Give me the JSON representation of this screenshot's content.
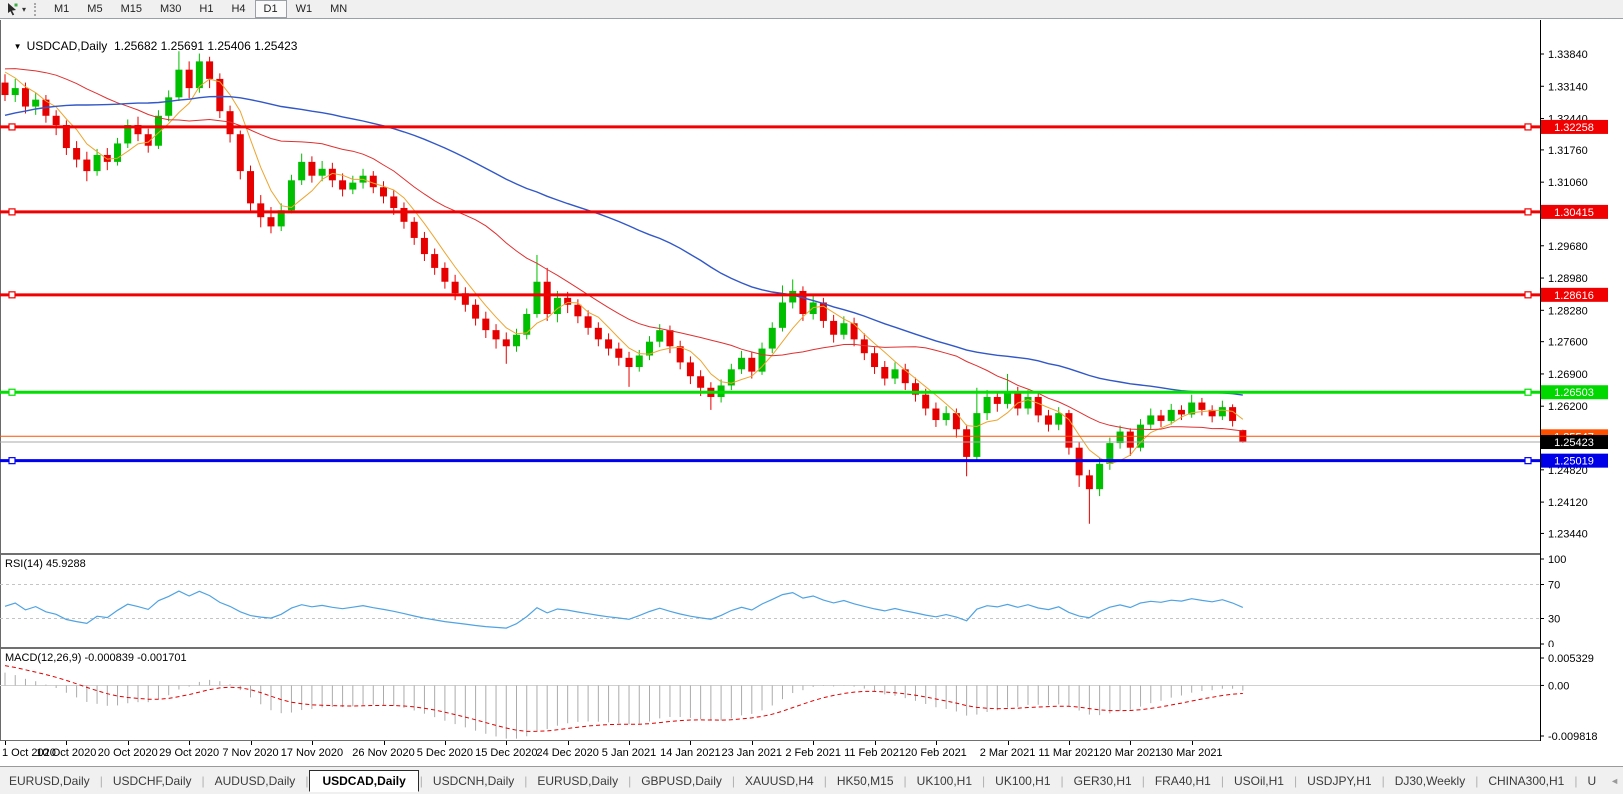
{
  "toolbar": {
    "cursor_tool_caret": "▾",
    "timeframes": [
      "M1",
      "M5",
      "M15",
      "M30",
      "H1",
      "H4",
      "D1",
      "W1",
      "MN"
    ],
    "active_timeframe": "D1"
  },
  "chart": {
    "title_marker": "▼",
    "symbol": "USDCAD,Daily",
    "ohlc_text": "1.25682 1.25691 1.25406 1.25423"
  },
  "price_axis": {
    "labels": [
      "1.33840",
      "1.33140",
      "1.32440",
      "1.31760",
      "1.31060",
      "1.29680",
      "1.28980",
      "1.28280",
      "1.27600",
      "1.26900",
      "1.26200",
      "1.24820",
      "1.24120",
      "1.23440"
    ]
  },
  "hlines": [
    {
      "name": "resistance-1",
      "price": 1.32258,
      "label": "1.32258",
      "color": "#f00000",
      "width": 3,
      "handles": true,
      "badge": "#f00000",
      "text": "#ffffff"
    },
    {
      "name": "resistance-2",
      "price": 1.30415,
      "label": "1.30415",
      "color": "#f00000",
      "width": 3,
      "handles": true,
      "badge": "#f00000",
      "text": "#ffffff"
    },
    {
      "name": "resistance-3",
      "price": 1.28616,
      "label": "1.28616",
      "color": "#f00000",
      "width": 3,
      "handles": true,
      "badge": "#f00000",
      "text": "#ffffff"
    },
    {
      "name": "support-green",
      "price": 1.26503,
      "label": "1.26503",
      "color": "#00e000",
      "width": 3,
      "handles": true,
      "badge": "#00d800",
      "text": "#ffffff"
    },
    {
      "name": "level-orange",
      "price": 1.25547,
      "label": "1.25547",
      "color": "#ff5000",
      "width": 1,
      "handles": false,
      "badge": "#ff5000",
      "text": "#ffffff"
    },
    {
      "name": "current-price",
      "price": 1.25423,
      "label": "1.25423",
      "color": "#a8a8a8",
      "width": 1,
      "handles": false,
      "badge": "#000000",
      "text": "#ffffff"
    },
    {
      "name": "support-blue",
      "price": 1.25019,
      "label": "1.25019",
      "color": "#0000f0",
      "width": 3,
      "handles": true,
      "badge": "#0000e8",
      "text": "#ffffff"
    }
  ],
  "rsi_panel": {
    "label": "RSI(14) 45.9288",
    "axis_labels": [
      {
        "v": 100,
        "t": "100"
      },
      {
        "v": 70,
        "t": "70"
      },
      {
        "v": 30,
        "t": "30"
      },
      {
        "v": 0,
        "t": "0"
      }
    ],
    "levels": [
      70,
      30
    ],
    "line_color": "#4fa3e3"
  },
  "macd_panel": {
    "label": "MACD(12,26,9) -0.000839 -0.001701",
    "axis_labels": [
      {
        "v": 0.005329,
        "t": "0.005329"
      },
      {
        "v": 0,
        "t": "0.00"
      },
      {
        "v": -0.009818,
        "t": "-0.009818"
      }
    ],
    "axis_max": 0.005329,
    "axis_min": -0.009818,
    "hist_color": "#ababab",
    "signal_color": "#e00000"
  },
  "date_axis": {
    "ticks": [
      [
        0,
        "1 Oct 2020"
      ],
      [
        6,
        "10 Oct 2020"
      ],
      [
        12,
        "20 Oct 2020"
      ],
      [
        18,
        "29 Oct 2020"
      ],
      [
        24,
        "7 Nov 2020"
      ],
      [
        30,
        "17 Nov 2020"
      ],
      [
        37,
        "26 Nov 2020"
      ],
      [
        43,
        "5 Dec 2020"
      ],
      [
        49,
        "15 Dec 2020"
      ],
      [
        55,
        "24 Dec 2020"
      ],
      [
        61,
        "5 Jan 2021"
      ],
      [
        67,
        "14 Jan 2021"
      ],
      [
        73,
        "23 Jan 2021"
      ],
      [
        79,
        "2 Feb 2021"
      ],
      [
        85,
        "11 Feb 2021"
      ],
      [
        91,
        "20 Feb 2021"
      ],
      [
        98,
        "2 Mar 2021"
      ],
      [
        104,
        "11 Mar 2021"
      ],
      [
        110,
        "20 Mar 2021"
      ],
      [
        116,
        "30 Mar 2021"
      ]
    ]
  },
  "tabs": {
    "items": [
      "EURUSD,Daily",
      "USDCHF,Daily",
      "AUDUSD,Daily",
      "USDCAD,Daily",
      "USDCNH,Daily",
      "EURUSD,Daily",
      "GBPUSD,Daily",
      "XAUUSD,H4",
      "HK50,M15",
      "UK100,H1",
      "UK100,H1",
      "GER30,H1",
      "FRA40,H1",
      "USOil,H1",
      "USDJPY,H1",
      "DJ30,Weekly",
      "CHINA300,H1",
      "U"
    ],
    "active": "USDCAD,Daily",
    "left_arrow": "◄",
    "right_arrow": "►"
  },
  "chart_data": {
    "type": "candlestick",
    "title": "USDCAD,Daily",
    "bull_color": "#00be00",
    "bear_color": "#e60000",
    "price_top_label": 1.3384,
    "price_bottom_label": 1.2344,
    "candles": [
      [
        1.3322,
        1.334,
        1.3282,
        1.3295
      ],
      [
        1.3295,
        1.333,
        1.328,
        1.331
      ],
      [
        1.331,
        1.3322,
        1.3255,
        1.327
      ],
      [
        1.327,
        1.33,
        1.3252,
        1.3285
      ],
      [
        1.3285,
        1.3295,
        1.3235,
        1.325
      ],
      [
        1.325,
        1.3262,
        1.3208,
        1.323
      ],
      [
        1.323,
        1.324,
        1.3165,
        1.318
      ],
      [
        1.318,
        1.3195,
        1.3138,
        1.3155
      ],
      [
        1.3155,
        1.3172,
        1.3108,
        1.313
      ],
      [
        1.313,
        1.3178,
        1.312,
        1.3165
      ],
      [
        1.3165,
        1.318,
        1.3132,
        1.315
      ],
      [
        1.315,
        1.3202,
        1.3142,
        1.319
      ],
      [
        1.319,
        1.3242,
        1.318,
        1.323
      ],
      [
        1.323,
        1.3248,
        1.3195,
        1.321
      ],
      [
        1.321,
        1.3222,
        1.317,
        1.3185
      ],
      [
        1.3185,
        1.3262,
        1.3178,
        1.325
      ],
      [
        1.325,
        1.3305,
        1.3238,
        1.329
      ],
      [
        1.329,
        1.339,
        1.3282,
        1.335
      ],
      [
        1.335,
        1.3368,
        1.3288,
        1.331
      ],
      [
        1.331,
        1.3385,
        1.33,
        1.3368
      ],
      [
        1.3368,
        1.3378,
        1.331,
        1.333
      ],
      [
        1.333,
        1.3342,
        1.3245,
        1.326
      ],
      [
        1.326,
        1.3272,
        1.3192,
        1.321
      ],
      [
        1.321,
        1.3218,
        1.3112,
        1.313
      ],
      [
        1.313,
        1.3142,
        1.3042,
        1.306
      ],
      [
        1.306,
        1.3078,
        1.3008,
        1.303
      ],
      [
        1.303,
        1.3052,
        1.2995,
        1.301
      ],
      [
        1.301,
        1.306,
        1.3,
        1.3045
      ],
      [
        1.3045,
        1.3122,
        1.3038,
        1.311
      ],
      [
        1.311,
        1.3168,
        1.31,
        1.315
      ],
      [
        1.315,
        1.3162,
        1.3105,
        1.312
      ],
      [
        1.312,
        1.3152,
        1.3108,
        1.3135
      ],
      [
        1.3135,
        1.3148,
        1.3095,
        1.311
      ],
      [
        1.311,
        1.3125,
        1.3075,
        1.309
      ],
      [
        1.309,
        1.312,
        1.308,
        1.3105
      ],
      [
        1.3105,
        1.3135,
        1.3092,
        1.312
      ],
      [
        1.312,
        1.313,
        1.3082,
        1.3095
      ],
      [
        1.3095,
        1.3108,
        1.306,
        1.3075
      ],
      [
        1.3075,
        1.3088,
        1.3035,
        1.305
      ],
      [
        1.305,
        1.3062,
        1.3005,
        1.302
      ],
      [
        1.302,
        1.303,
        1.297,
        1.2985
      ],
      [
        1.2985,
        1.2998,
        1.2935,
        1.295
      ],
      [
        1.295,
        1.2962,
        1.2905,
        1.292
      ],
      [
        1.292,
        1.2932,
        1.2875,
        1.289
      ],
      [
        1.289,
        1.2905,
        1.285,
        1.2865
      ],
      [
        1.2865,
        1.2878,
        1.2825,
        1.284
      ],
      [
        1.284,
        1.2852,
        1.2795,
        1.281
      ],
      [
        1.281,
        1.2825,
        1.2768,
        1.2785
      ],
      [
        1.2785,
        1.2798,
        1.2745,
        1.2765
      ],
      [
        1.2765,
        1.278,
        1.2712,
        1.275
      ],
      [
        1.275,
        1.2788,
        1.2738,
        1.2775
      ],
      [
        1.2775,
        1.2832,
        1.2765,
        1.282
      ],
      [
        1.282,
        1.2948,
        1.2812,
        1.289
      ],
      [
        1.289,
        1.292,
        1.2805,
        1.282
      ],
      [
        1.282,
        1.287,
        1.2802,
        1.2855
      ],
      [
        1.2855,
        1.2868,
        1.2822,
        1.284
      ],
      [
        1.284,
        1.2852,
        1.28,
        1.2815
      ],
      [
        1.2815,
        1.2828,
        1.2775,
        1.279
      ],
      [
        1.279,
        1.2802,
        1.275,
        1.2765
      ],
      [
        1.2765,
        1.2778,
        1.273,
        1.2745
      ],
      [
        1.2745,
        1.2758,
        1.2708,
        1.2725
      ],
      [
        1.2725,
        1.2738,
        1.2662,
        1.2705
      ],
      [
        1.2705,
        1.2742,
        1.2695,
        1.273
      ],
      [
        1.273,
        1.2772,
        1.272,
        1.276
      ],
      [
        1.276,
        1.2798,
        1.2748,
        1.2785
      ],
      [
        1.2785,
        1.2795,
        1.2735,
        1.275
      ],
      [
        1.275,
        1.2762,
        1.27,
        1.2715
      ],
      [
        1.2715,
        1.2728,
        1.2668,
        1.2685
      ],
      [
        1.2685,
        1.2698,
        1.2642,
        1.266
      ],
      [
        1.266,
        1.2672,
        1.2612,
        1.264
      ],
      [
        1.264,
        1.2678,
        1.2628,
        1.2665
      ],
      [
        1.2665,
        1.2712,
        1.2655,
        1.27
      ],
      [
        1.27,
        1.274,
        1.269,
        1.2725
      ],
      [
        1.2725,
        1.2738,
        1.268,
        1.2695
      ],
      [
        1.2695,
        1.2758,
        1.2688,
        1.2745
      ],
      [
        1.2745,
        1.2802,
        1.2735,
        1.279
      ],
      [
        1.279,
        1.2882,
        1.2782,
        1.2845
      ],
      [
        1.2845,
        1.2895,
        1.2832,
        1.287
      ],
      [
        1.287,
        1.288,
        1.2805,
        1.282
      ],
      [
        1.282,
        1.2862,
        1.2808,
        1.2845
      ],
      [
        1.2845,
        1.2855,
        1.279,
        1.2805
      ],
      [
        1.2805,
        1.2818,
        1.2758,
        1.2775
      ],
      [
        1.2775,
        1.2815,
        1.2765,
        1.28
      ],
      [
        1.28,
        1.2812,
        1.275,
        1.2765
      ],
      [
        1.2765,
        1.2778,
        1.272,
        1.2735
      ],
      [
        1.2735,
        1.2748,
        1.269,
        1.2705
      ],
      [
        1.2705,
        1.2718,
        1.2665,
        1.268
      ],
      [
        1.268,
        1.2715,
        1.2668,
        1.27
      ],
      [
        1.27,
        1.2712,
        1.2655,
        1.267
      ],
      [
        1.267,
        1.2682,
        1.263,
        1.2645
      ],
      [
        1.2645,
        1.2658,
        1.26,
        1.2615
      ],
      [
        1.2615,
        1.2628,
        1.2575,
        1.259
      ],
      [
        1.259,
        1.262,
        1.2578,
        1.2605
      ],
      [
        1.2605,
        1.2615,
        1.2552,
        1.257
      ],
      [
        1.257,
        1.258,
        1.2468,
        1.251
      ],
      [
        1.251,
        1.266,
        1.2502,
        1.2605
      ],
      [
        1.2605,
        1.2655,
        1.259,
        1.264
      ],
      [
        1.264,
        1.2652,
        1.2608,
        1.2625
      ],
      [
        1.2625,
        1.269,
        1.2615,
        1.265
      ],
      [
        1.265,
        1.2662,
        1.26,
        1.2615
      ],
      [
        1.2615,
        1.2655,
        1.2602,
        1.264
      ],
      [
        1.264,
        1.265,
        1.2585,
        1.26
      ],
      [
        1.26,
        1.2612,
        1.2565,
        1.258
      ],
      [
        1.258,
        1.2618,
        1.2568,
        1.2605
      ],
      [
        1.2605,
        1.2612,
        1.2515,
        1.253
      ],
      [
        1.253,
        1.2542,
        1.2445,
        1.247
      ],
      [
        1.247,
        1.2482,
        1.2365,
        1.244
      ],
      [
        1.244,
        1.2508,
        1.2425,
        1.2495
      ],
      [
        1.2495,
        1.2552,
        1.2482,
        1.254
      ],
      [
        1.254,
        1.2578,
        1.2528,
        1.2565
      ],
      [
        1.2565,
        1.2572,
        1.2512,
        1.253
      ],
      [
        1.253,
        1.2592,
        1.2522,
        1.258
      ],
      [
        1.258,
        1.2615,
        1.257,
        1.26
      ],
      [
        1.26,
        1.2612,
        1.2575,
        1.2588
      ],
      [
        1.2588,
        1.2625,
        1.258,
        1.2612
      ],
      [
        1.2612,
        1.2622,
        1.259,
        1.2602
      ],
      [
        1.2602,
        1.2645,
        1.2595,
        1.2628
      ],
      [
        1.2628,
        1.2638,
        1.26,
        1.2612
      ],
      [
        1.2612,
        1.2622,
        1.2585,
        1.2598
      ],
      [
        1.2598,
        1.2632,
        1.259,
        1.2618
      ],
      [
        1.2618,
        1.2624,
        1.2576,
        1.2588
      ],
      [
        1.25682,
        1.25691,
        1.25406,
        1.25423
      ]
    ],
    "ma_seed_closes": [
      1.304,
      1.3055,
      1.307,
      1.306,
      1.3085,
      1.31,
      1.309,
      1.311,
      1.3125,
      1.314,
      1.313,
      1.315,
      1.3165,
      1.3155,
      1.3175,
      1.319,
      1.318,
      1.32,
      1.3215,
      1.3205,
      1.3225,
      1.324,
      1.323,
      1.325,
      1.3265,
      1.3255,
      1.3275,
      1.329,
      1.328,
      1.33,
      1.331,
      1.33,
      1.332,
      1.3335,
      1.3325,
      1.334,
      1.3355,
      1.3345,
      1.336,
      1.337,
      1.336,
      1.3375,
      1.3385,
      1.337,
      1.338,
      1.339,
      1.3375,
      1.3365,
      1.335,
      1.334
    ],
    "moving_averages": [
      {
        "name": "fast-ma",
        "type": "sma",
        "period": 5,
        "color": "#eda52f",
        "width": 1
      },
      {
        "name": "mid-ma",
        "type": "sma",
        "period": 20,
        "color": "#e03030",
        "width": 1
      },
      {
        "name": "slow-ma",
        "type": "sma",
        "period": 50,
        "color": "#3258c8",
        "width": 1.4
      }
    ],
    "rsi": {
      "period": 14,
      "current": 45.9288,
      "range": [
        0,
        100
      ],
      "levels": [
        70,
        30
      ]
    },
    "macd": {
      "fast": 12,
      "slow": 26,
      "signal": 9,
      "current_macd": -0.000839,
      "current_signal": -0.001701
    }
  }
}
